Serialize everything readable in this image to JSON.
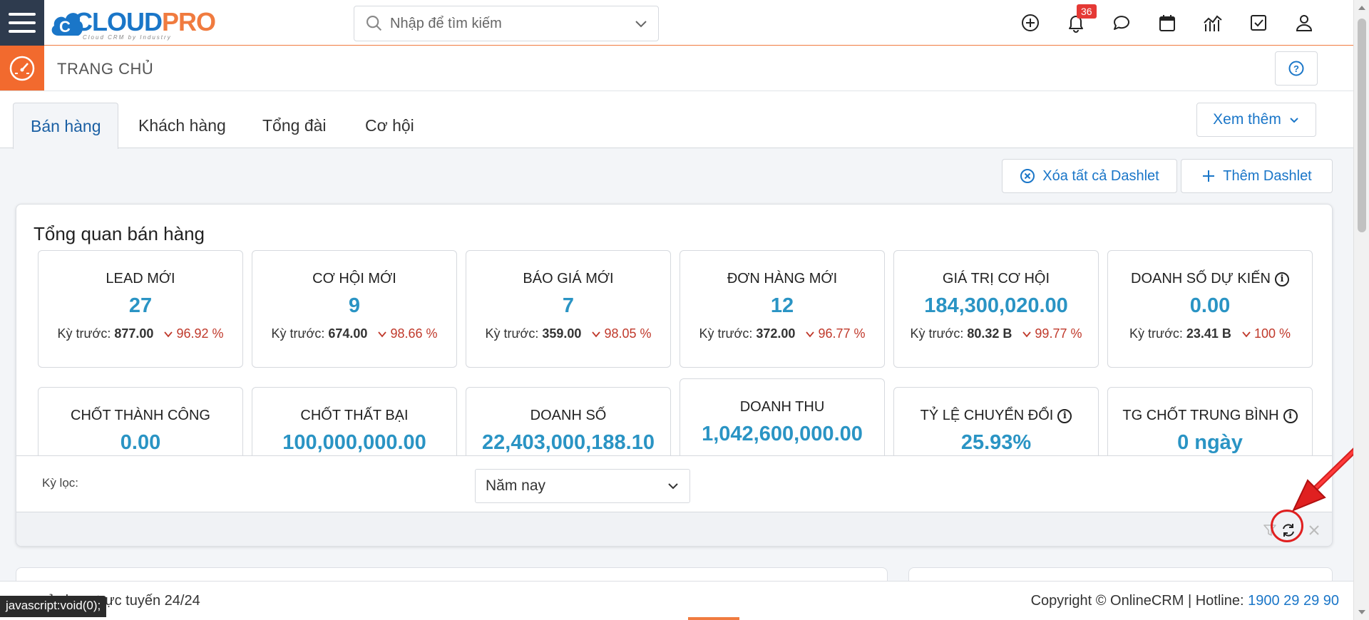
{
  "header": {
    "logo_main_1": "CLOUD",
    "logo_main_2": "PRO",
    "logo_sub": "Cloud CRM by Industry",
    "search_placeholder": "Nhập để tìm kiếm",
    "notification_count": "36"
  },
  "pagebar": {
    "title": "TRANG CHỦ"
  },
  "tabs": [
    {
      "label": "Bán hàng",
      "active": true
    },
    {
      "label": "Khách hàng",
      "active": false
    },
    {
      "label": "Tổng đài",
      "active": false
    },
    {
      "label": "Cơ hội",
      "active": false
    }
  ],
  "more_label": "Xem thêm",
  "actions": {
    "clear_all": "Xóa tất cả Dashlet",
    "add": "Thêm Dashlet"
  },
  "dashlet": {
    "title": "Tổng quan bán hàng",
    "prev_label": "Kỳ trước:",
    "cards_row1": [
      {
        "label": "LEAD MỚI",
        "value": "27",
        "prev": "877.00",
        "pct": "96.92 %",
        "info": false
      },
      {
        "label": "CƠ HỘI MỚI",
        "value": "9",
        "prev": "674.00",
        "pct": "98.66 %",
        "info": false
      },
      {
        "label": "BÁO GIÁ MỚI",
        "value": "7",
        "prev": "359.00",
        "pct": "98.05 %",
        "info": false
      },
      {
        "label": "ĐƠN HÀNG MỚI",
        "value": "12",
        "prev": "372.00",
        "pct": "96.77 %",
        "info": false
      },
      {
        "label": "GIÁ TRỊ CƠ HỘI",
        "value": "184,300,020.00",
        "prev": "80.32 B",
        "pct": "99.77 %",
        "info": false
      },
      {
        "label": "DOANH SỐ DỰ KIẾN",
        "value": "0.00",
        "prev": "23.41 B",
        "pct": "100 %",
        "info": true
      }
    ],
    "cards_row2": [
      {
        "label": "CHỐT THÀNH CÔNG",
        "value": "0.00",
        "info": false
      },
      {
        "label": "CHỐT THẤT BẠI",
        "value": "100,000,000.00",
        "info": false
      },
      {
        "label": "DOANH SỐ",
        "value": "22,403,000,188.10",
        "info": false
      },
      {
        "label": "DOANH THU",
        "value": "1,042,600,000.00",
        "info": false
      },
      {
        "label": "TỶ LỆ CHUYỂN ĐỔI",
        "value": "25.93%",
        "info": true
      },
      {
        "label": "TG CHỐT TRUNG BÌNH",
        "value": "0 ngày",
        "info": true
      }
    ],
    "filter_label": "Kỳ lọc:",
    "filter_value": "Năm nay"
  },
  "footer": {
    "usage_prefix": "sử dụng trực tuyến 24/24",
    "copyright": "Copyright © OnlineCRM | Hotline: ",
    "hotline": "1900 29 29 90"
  },
  "status_tip": "javascript:void(0);",
  "colors": {
    "accent_blue": "#1a76c8",
    "value_blue": "#2a94c4",
    "brand_orange": "#f07b3f",
    "down_red": "#c0392b"
  }
}
